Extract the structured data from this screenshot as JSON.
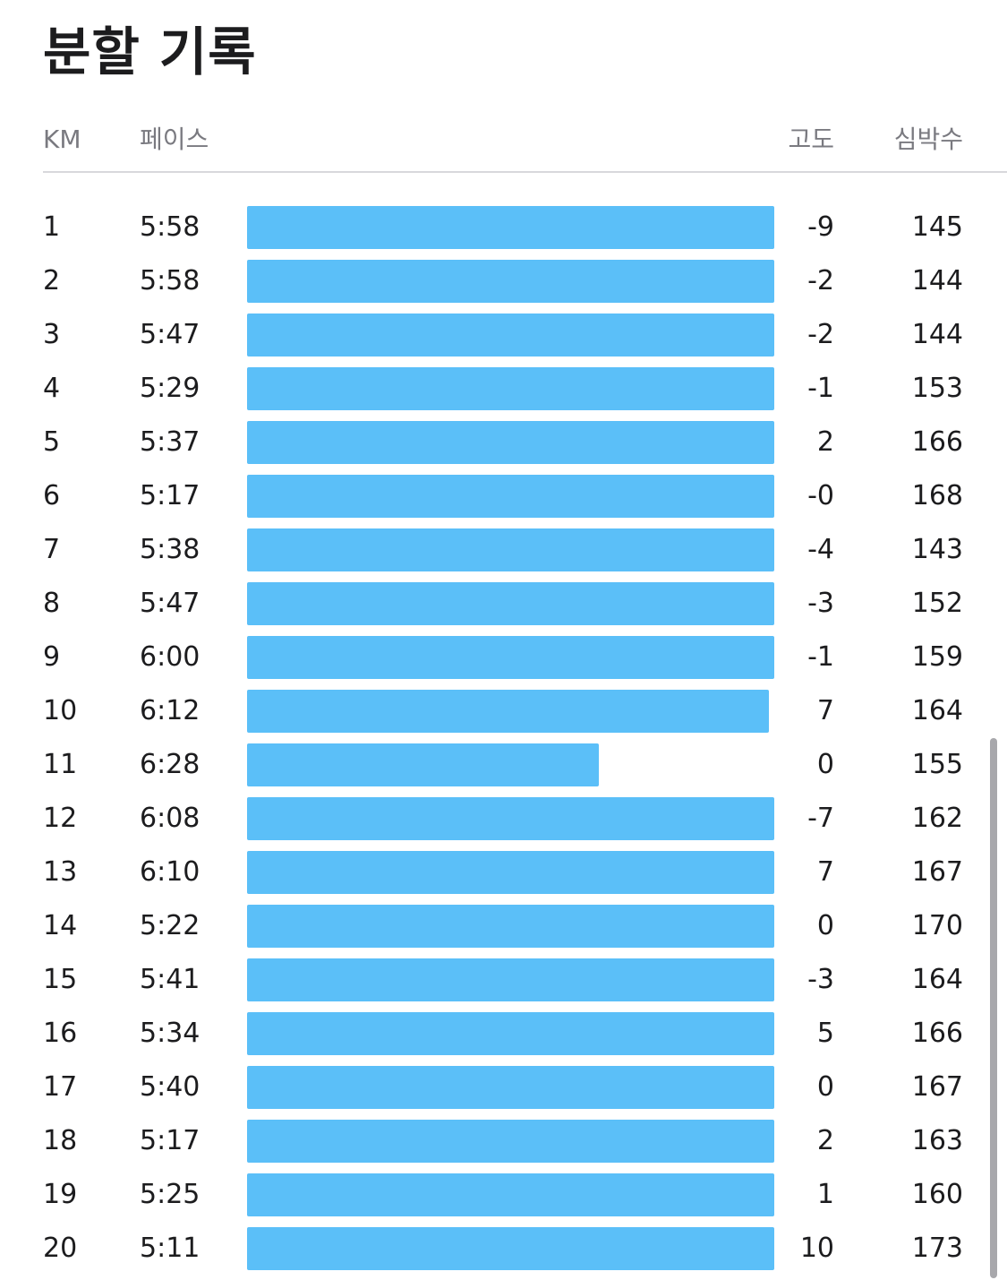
{
  "title": "분할 기록",
  "headers": {
    "km": "KM",
    "pace": "페이스",
    "elevation": "고도",
    "heart_rate": "심박수"
  },
  "splits": [
    {
      "km": "1",
      "pace": "5:58",
      "elevation": "-9",
      "heart_rate": "145"
    },
    {
      "km": "2",
      "pace": "5:58",
      "elevation": "-2",
      "heart_rate": "144"
    },
    {
      "km": "3",
      "pace": "5:47",
      "elevation": "-2",
      "heart_rate": "144"
    },
    {
      "km": "4",
      "pace": "5:29",
      "elevation": "-1",
      "heart_rate": "153"
    },
    {
      "km": "5",
      "pace": "5:37",
      "elevation": "2",
      "heart_rate": "166"
    },
    {
      "km": "6",
      "pace": "5:17",
      "elevation": "-0",
      "heart_rate": "168"
    },
    {
      "km": "7",
      "pace": "5:38",
      "elevation": "-4",
      "heart_rate": "143"
    },
    {
      "km": "8",
      "pace": "5:47",
      "elevation": "-3",
      "heart_rate": "152"
    },
    {
      "km": "9",
      "pace": "6:00",
      "elevation": "-1",
      "heart_rate": "159"
    },
    {
      "km": "10",
      "pace": "6:12",
      "elevation": "7",
      "heart_rate": "164"
    },
    {
      "km": "11",
      "pace": "6:28",
      "elevation": "0",
      "heart_rate": "155"
    },
    {
      "km": "12",
      "pace": "6:08",
      "elevation": "-7",
      "heart_rate": "162"
    },
    {
      "km": "13",
      "pace": "6:10",
      "elevation": "7",
      "heart_rate": "167"
    },
    {
      "km": "14",
      "pace": "5:22",
      "elevation": "0",
      "heart_rate": "170"
    },
    {
      "km": "15",
      "pace": "5:41",
      "elevation": "-3",
      "heart_rate": "164"
    },
    {
      "km": "16",
      "pace": "5:34",
      "elevation": "5",
      "heart_rate": "166"
    },
    {
      "km": "17",
      "pace": "5:40",
      "elevation": "0",
      "heart_rate": "167"
    },
    {
      "km": "18",
      "pace": "5:17",
      "elevation": "2",
      "heart_rate": "163"
    },
    {
      "km": "19",
      "pace": "5:25",
      "elevation": "1",
      "heart_rate": "160"
    },
    {
      "km": "20",
      "pace": "5:11",
      "elevation": "10",
      "heart_rate": "173"
    }
  ],
  "colors": {
    "bar": "#5bbff8",
    "header_text": "#7a7a80",
    "divider": "#d8d8dc"
  }
}
